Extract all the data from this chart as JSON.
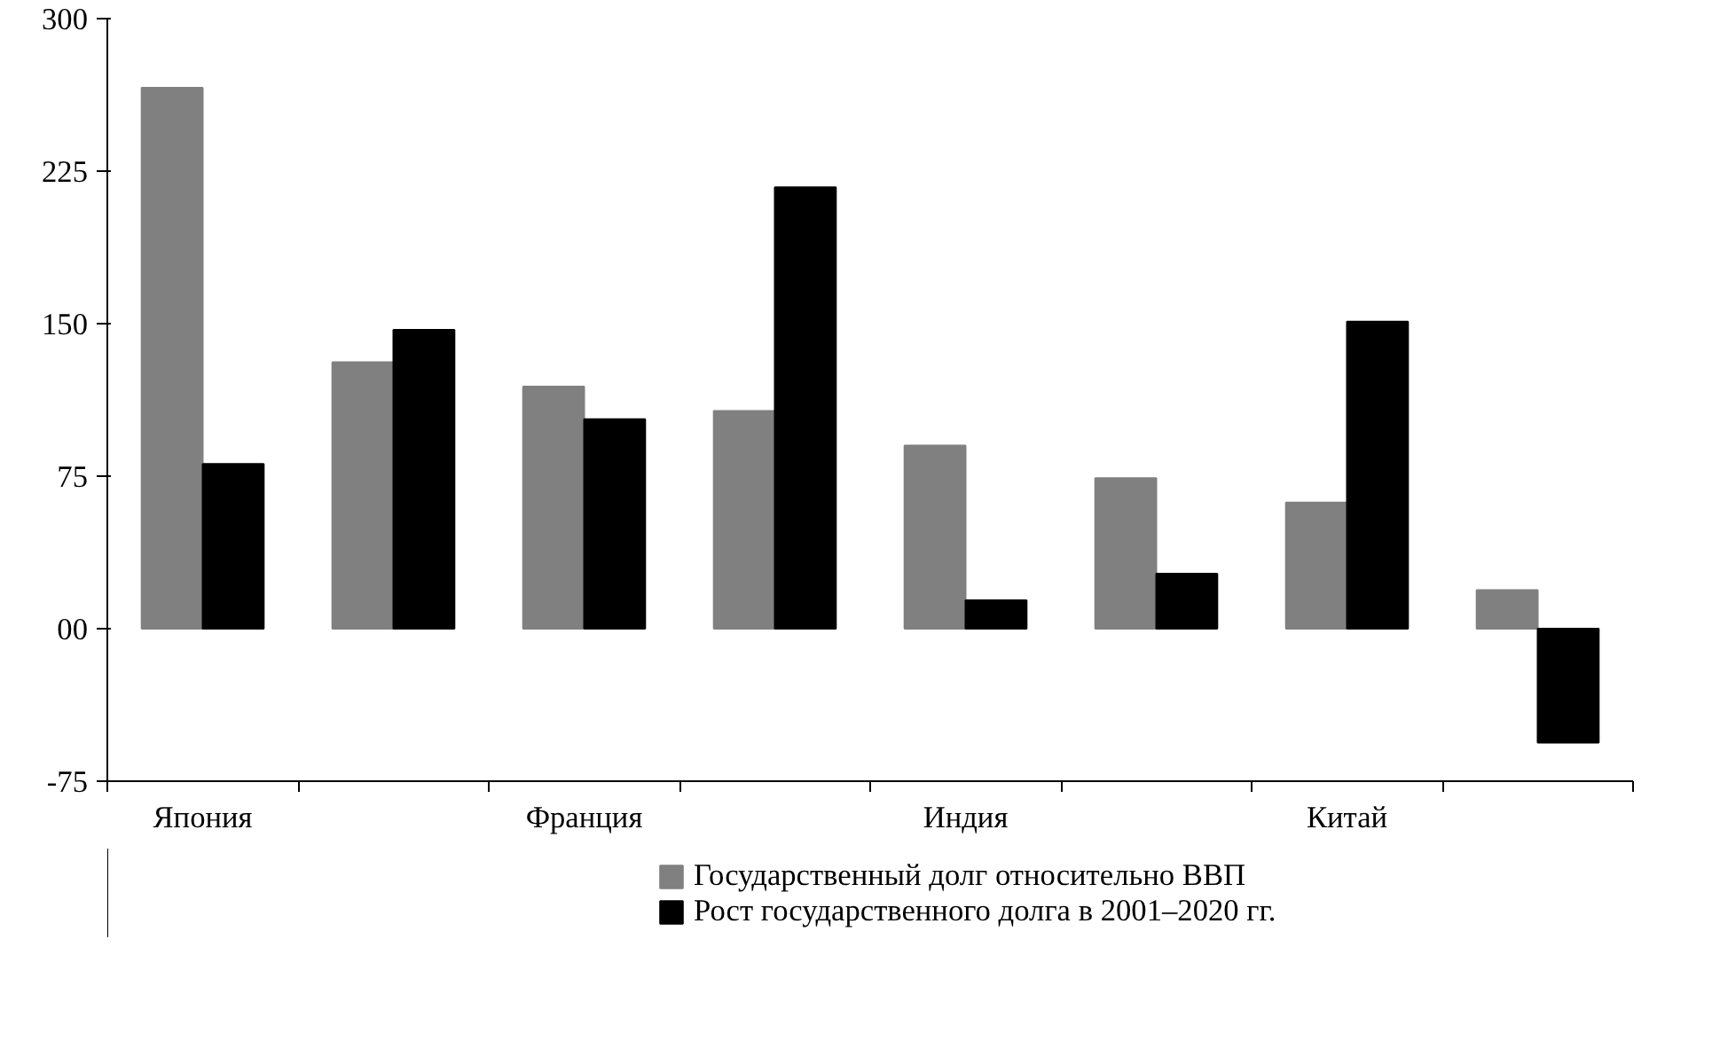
{
  "chart_data": {
    "type": "bar",
    "categories": [
      "Япония",
      null,
      "Франция",
      null,
      "Индия",
      null,
      "Китай",
      null
    ],
    "series": [
      {
        "name": "Государственный долг относительно ВВП",
        "color": "#808080",
        "values": [
          266,
          131,
          119,
          107,
          90,
          74,
          62,
          19
        ]
      },
      {
        "name": "Рост государственного долга в 2001–2020 гг.",
        "color": "#000000",
        "values": [
          81,
          147,
          103,
          217,
          14,
          27,
          151,
          -56
        ]
      }
    ],
    "ylim": [
      -75,
      300
    ],
    "yticks": [
      -75,
      {
        "value": 0,
        "label": "00"
      },
      75,
      150,
      225,
      300
    ],
    "grid": false,
    "legend": "bottom"
  }
}
